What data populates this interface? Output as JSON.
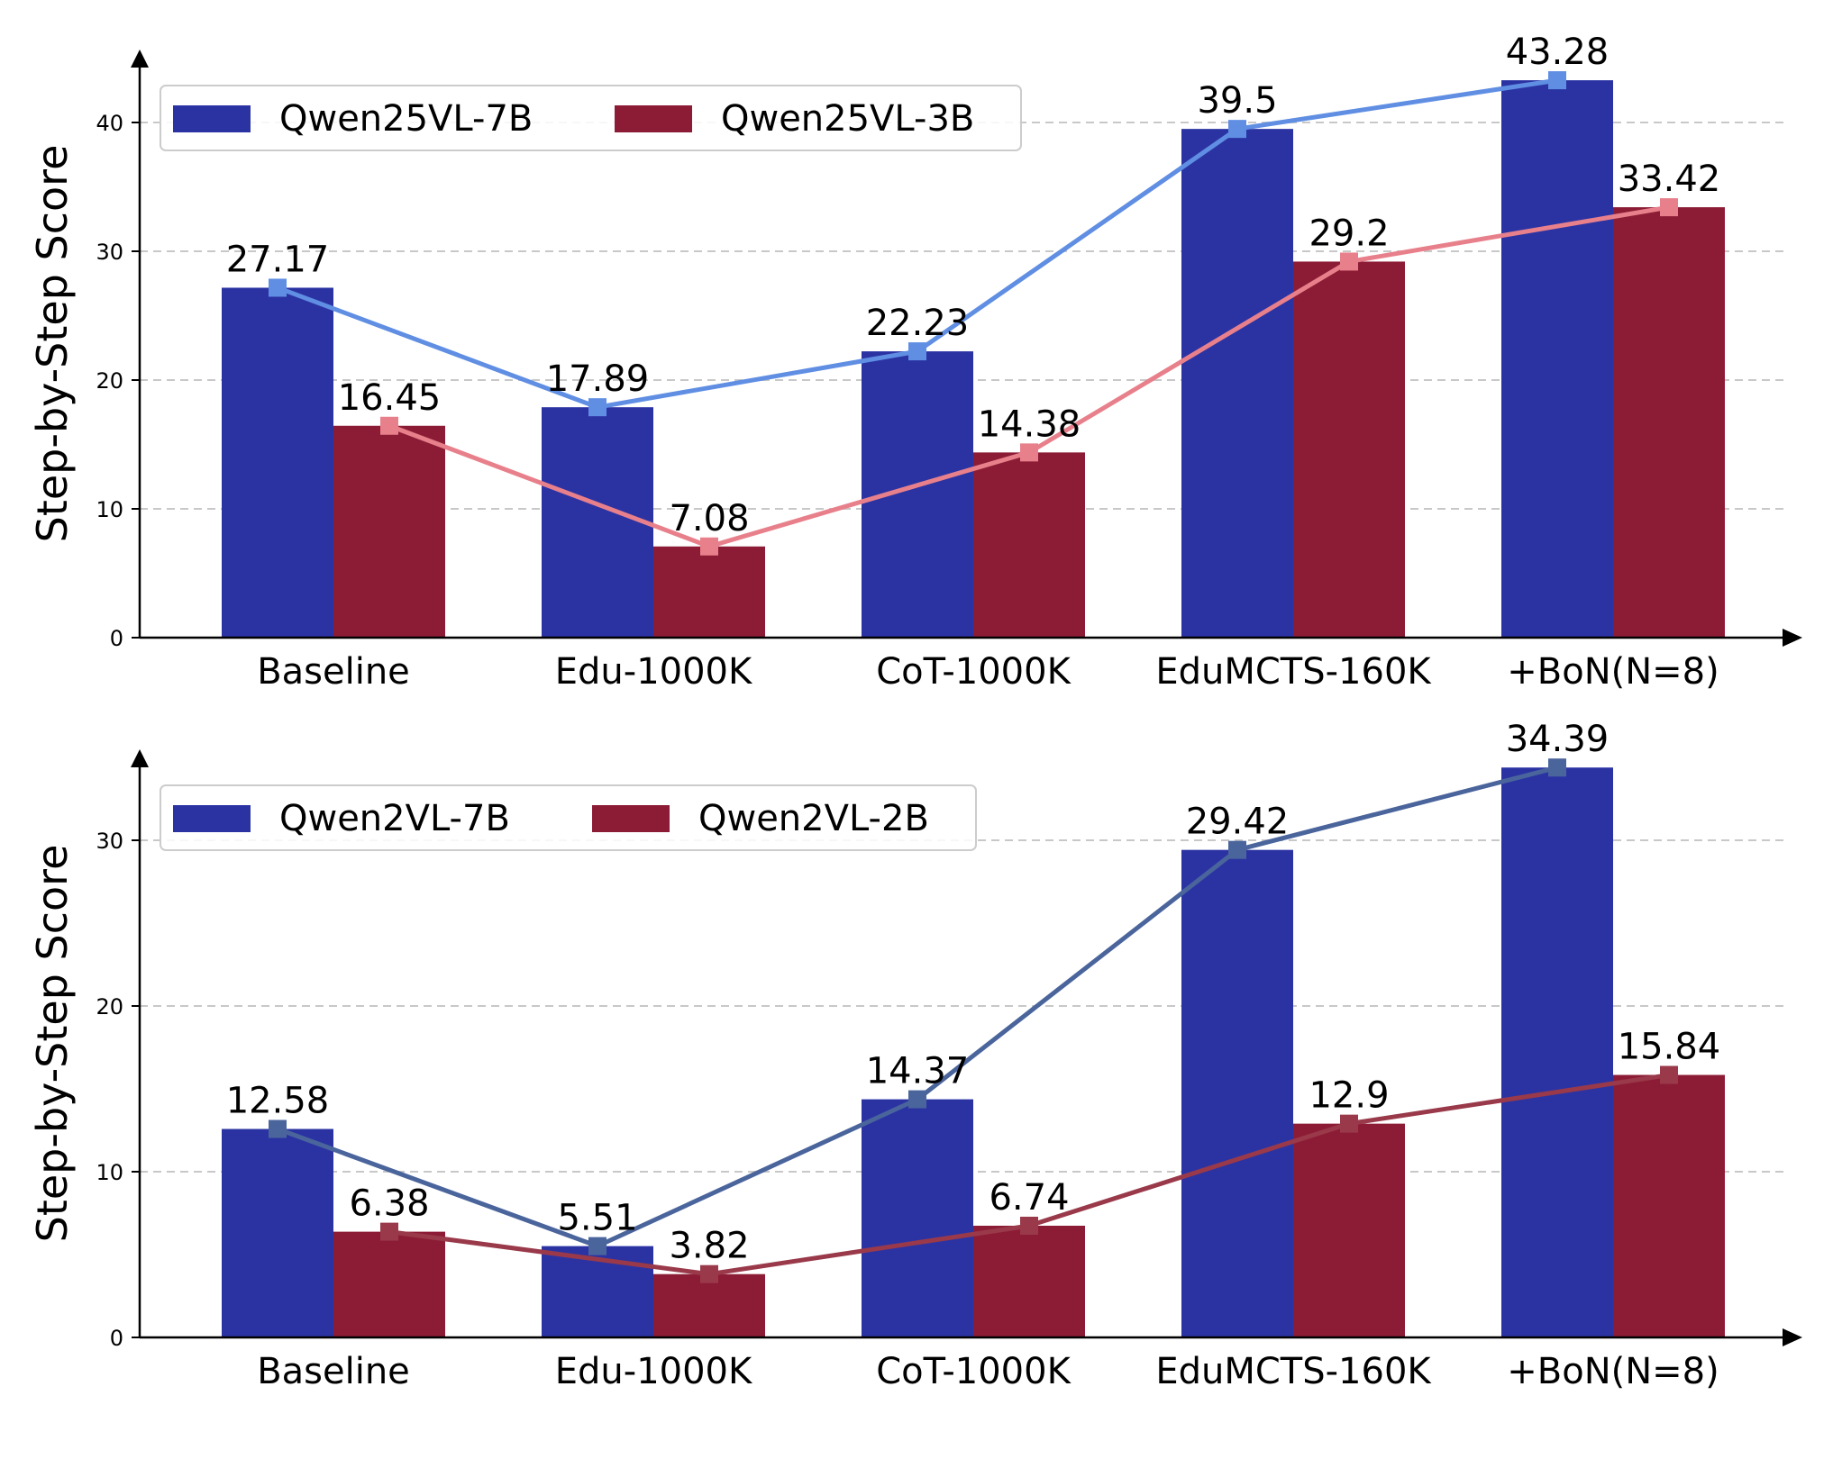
{
  "chart_data": [
    {
      "type": "bar",
      "overlay": "line-with-square-markers",
      "categories": [
        "Baseline",
        "Edu-1000K",
        "CoT-1000K",
        "EduMCTS-160K",
        "+BoN(N=8)"
      ],
      "ylabel": "Step-by-Step Score",
      "xlabel": "",
      "ylim": [
        0,
        45
      ],
      "yticks": [
        "0",
        "10",
        "20",
        "30",
        "40"
      ],
      "ytick_values": [
        0,
        10,
        20,
        30,
        40
      ],
      "grid": true,
      "legend_position": "top-left",
      "series": [
        {
          "name": "Qwen25VL-7B",
          "values": [
            27.17,
            17.89,
            22.23,
            39.5,
            43.28
          ],
          "labels": [
            "27.17",
            "17.89",
            "22.23",
            "39.5",
            "43.28"
          ],
          "bar_color": "#2b33a3",
          "line_color": "#5f8ee3"
        },
        {
          "name": "Qwen25VL-3B",
          "values": [
            16.45,
            7.08,
            14.38,
            29.2,
            33.42
          ],
          "labels": [
            "16.45",
            "7.08",
            "14.38",
            "29.2",
            "33.42"
          ],
          "bar_color": "#8c1c35",
          "line_color": "#e8808b"
        }
      ]
    },
    {
      "type": "bar",
      "overlay": "line-with-square-markers",
      "categories": [
        "Baseline",
        "Edu-1000K",
        "CoT-1000K",
        "EduMCTS-160K",
        "+BoN(N=8)"
      ],
      "ylabel": "Step-by-Step Score",
      "xlabel": "",
      "ylim": [
        0,
        35
      ],
      "yticks": [
        "0",
        "10",
        "20",
        "30"
      ],
      "ytick_values": [
        0,
        10,
        20,
        30
      ],
      "grid": true,
      "legend_position": "top-left",
      "series": [
        {
          "name": "Qwen2VL-7B",
          "values": [
            12.58,
            5.51,
            14.37,
            29.42,
            34.39
          ],
          "labels": [
            "12.58",
            "5.51",
            "14.37",
            "29.42",
            "34.39"
          ],
          "bar_color": "#2b33a3",
          "line_color": "#4a649c"
        },
        {
          "name": "Qwen2VL-2B",
          "values": [
            6.38,
            3.82,
            6.74,
            12.9,
            15.84
          ],
          "labels": [
            "6.38",
            "3.82",
            "6.74",
            "12.9",
            "15.84"
          ],
          "bar_color": "#8c1c35",
          "line_color": "#99394a"
        }
      ]
    }
  ]
}
